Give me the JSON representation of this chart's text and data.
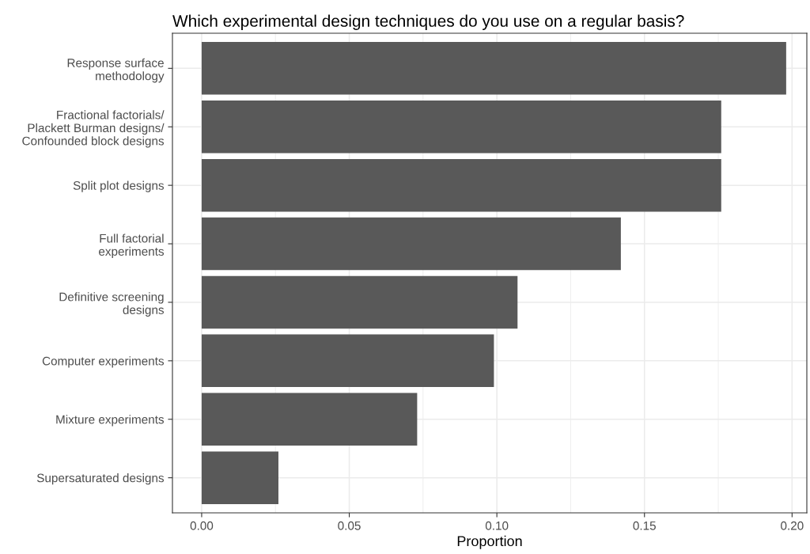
{
  "chart_data": {
    "type": "bar",
    "orientation": "horizontal",
    "title": "Which experimental design techniques do you use on a regular basis?",
    "xlabel": "Proportion",
    "categories": [
      "Response surface\nmethodology",
      "Fractional factorials/\nPlackett Burman designs/\nConfounded block designs",
      "Split plot designs",
      "Full factorial\nexperiments",
      "Definitive screening\ndesigns",
      "Computer experiments",
      "Mixture experiments",
      "Supersaturated designs"
    ],
    "values": [
      0.198,
      0.176,
      0.176,
      0.142,
      0.107,
      0.099,
      0.073,
      0.026
    ],
    "color": "#595959",
    "xlim": [
      -0.0099,
      0.205
    ],
    "xticks": [
      {
        "value": 0,
        "label": "0.00"
      },
      {
        "value": 0.05,
        "label": "0.05"
      },
      {
        "value": 0.1,
        "label": "0.10"
      },
      {
        "value": 0.15,
        "label": "0.15"
      },
      {
        "value": 0.2,
        "label": "0.20"
      }
    ],
    "grid": true
  }
}
